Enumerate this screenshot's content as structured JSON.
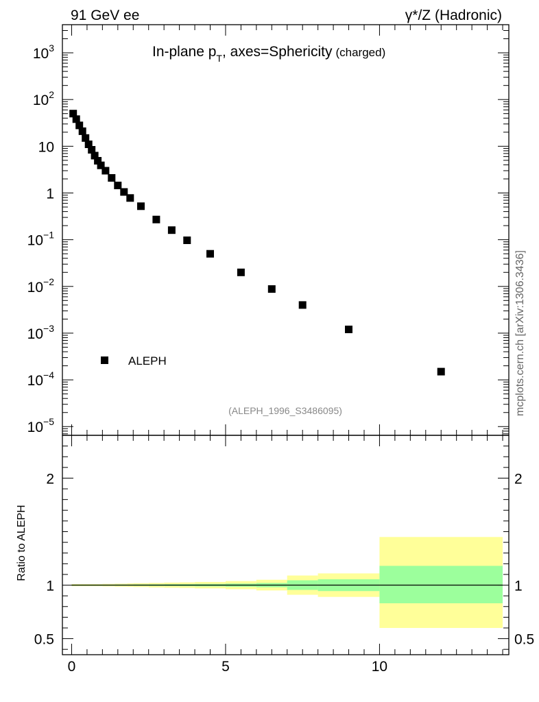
{
  "header": {
    "left": "91 GeV ee",
    "right_symbol": "γ",
    "right_rest": "*/Z (Hadronic)"
  },
  "plot_title": {
    "main": "In-plane p",
    "sub": "T",
    "rest": ", axes=Sphericity",
    "small": "(charged)"
  },
  "side_label": "mcplots.cern.ch [arXiv:1306.3436]",
  "analysis_tag": "(ALEPH_1996_S3486095)",
  "chart_data": [
    {
      "type": "scatter",
      "name": "main",
      "yscale": "log",
      "xlim": [
        -0.3,
        14.2
      ],
      "ylim": [
        6.5e-06,
        4000
      ],
      "ytick_labels": [
        {
          "value": 1000,
          "base": "10",
          "exp": "3"
        },
        {
          "value": 100,
          "base": "10",
          "exp": "2"
        },
        {
          "value": 10,
          "base": "10",
          "exp": ""
        },
        {
          "value": 1,
          "base": "1",
          "exp": ""
        },
        {
          "value": 0.1,
          "base": "10",
          "exp": "−1"
        },
        {
          "value": 0.01,
          "base": "10",
          "exp": "−2"
        },
        {
          "value": 0.001,
          "base": "10",
          "exp": "−3"
        },
        {
          "value": 0.0001,
          "base": "10",
          "exp": "−4"
        },
        {
          "value": 1e-05,
          "base": "10",
          "exp": "−5"
        }
      ],
      "legend": [
        {
          "label": "ALEPH",
          "marker": "square",
          "position": "lower-left"
        }
      ],
      "series": [
        {
          "name": "ALEPH",
          "x": [
            0.05,
            0.15,
            0.25,
            0.35,
            0.45,
            0.55,
            0.65,
            0.75,
            0.85,
            0.95,
            1.1,
            1.3,
            1.5,
            1.7,
            1.9,
            2.25,
            2.75,
            3.25,
            3.75,
            4.5,
            5.5,
            6.5,
            7.5,
            9.0,
            12.0
          ],
          "y": [
            50,
            38,
            28,
            21,
            15,
            11,
            8.4,
            6.3,
            4.9,
            3.9,
            3.0,
            2.1,
            1.45,
            1.05,
            0.78,
            0.52,
            0.27,
            0.16,
            0.097,
            0.05,
            0.02,
            0.0088,
            0.004,
            0.0012,
            0.00015
          ]
        }
      ]
    },
    {
      "type": "area",
      "name": "ratio",
      "ylabel": "Ratio to ALEPH",
      "ylim": [
        0.35,
        2.4
      ],
      "yticks": [
        0.5,
        1,
        2
      ],
      "ytick_labels": [
        "0.5",
        "1",
        "2"
      ],
      "xticks": [
        0,
        5,
        10
      ],
      "xtick_labels": [
        "0",
        "5",
        "10"
      ],
      "reference": 1,
      "bins": [
        {
          "x0": 0.0,
          "x1": 0.1,
          "inner": [
            0.995,
            1.005
          ],
          "outer": [
            0.99,
            1.01
          ]
        },
        {
          "x0": 0.1,
          "x1": 0.2,
          "inner": [
            0.995,
            1.005
          ],
          "outer": [
            0.99,
            1.01
          ]
        },
        {
          "x0": 0.2,
          "x1": 0.3,
          "inner": [
            0.995,
            1.005
          ],
          "outer": [
            0.99,
            1.01
          ]
        },
        {
          "x0": 0.3,
          "x1": 0.4,
          "inner": [
            0.995,
            1.005
          ],
          "outer": [
            0.99,
            1.01
          ]
        },
        {
          "x0": 0.4,
          "x1": 0.5,
          "inner": [
            0.995,
            1.005
          ],
          "outer": [
            0.99,
            1.01
          ]
        },
        {
          "x0": 0.5,
          "x1": 0.6,
          "inner": [
            0.995,
            1.005
          ],
          "outer": [
            0.99,
            1.01
          ]
        },
        {
          "x0": 0.6,
          "x1": 0.7,
          "inner": [
            0.995,
            1.005
          ],
          "outer": [
            0.99,
            1.01
          ]
        },
        {
          "x0": 0.7,
          "x1": 0.8,
          "inner": [
            0.995,
            1.005
          ],
          "outer": [
            0.99,
            1.01
          ]
        },
        {
          "x0": 0.8,
          "x1": 0.9,
          "inner": [
            0.995,
            1.005
          ],
          "outer": [
            0.99,
            1.01
          ]
        },
        {
          "x0": 0.9,
          "x1": 1.0,
          "inner": [
            0.995,
            1.005
          ],
          "outer": [
            0.99,
            1.01
          ]
        },
        {
          "x0": 1.0,
          "x1": 1.2,
          "inner": [
            0.995,
            1.005
          ],
          "outer": [
            0.988,
            1.012
          ]
        },
        {
          "x0": 1.2,
          "x1": 1.4,
          "inner": [
            0.995,
            1.005
          ],
          "outer": [
            0.988,
            1.012
          ]
        },
        {
          "x0": 1.4,
          "x1": 1.6,
          "inner": [
            0.994,
            1.006
          ],
          "outer": [
            0.986,
            1.014
          ]
        },
        {
          "x0": 1.6,
          "x1": 1.8,
          "inner": [
            0.994,
            1.006
          ],
          "outer": [
            0.986,
            1.014
          ]
        },
        {
          "x0": 1.8,
          "x1": 2.0,
          "inner": [
            0.994,
            1.006
          ],
          "outer": [
            0.984,
            1.016
          ]
        },
        {
          "x0": 2.0,
          "x1": 2.5,
          "inner": [
            0.993,
            1.007
          ],
          "outer": [
            0.982,
            1.018
          ]
        },
        {
          "x0": 2.5,
          "x1": 3.0,
          "inner": [
            0.992,
            1.008
          ],
          "outer": [
            0.979,
            1.021
          ]
        },
        {
          "x0": 3.0,
          "x1": 3.5,
          "inner": [
            0.991,
            1.009
          ],
          "outer": [
            0.976,
            1.024
          ]
        },
        {
          "x0": 3.5,
          "x1": 4.0,
          "inner": [
            0.99,
            1.01
          ],
          "outer": [
            0.974,
            1.026
          ]
        },
        {
          "x0": 4.0,
          "x1": 5.0,
          "inner": [
            0.988,
            1.012
          ],
          "outer": [
            0.97,
            1.03
          ]
        },
        {
          "x0": 5.0,
          "x1": 6.0,
          "inner": [
            0.985,
            1.015
          ],
          "outer": [
            0.962,
            1.038
          ]
        },
        {
          "x0": 6.0,
          "x1": 7.0,
          "inner": [
            0.98,
            1.02
          ],
          "outer": [
            0.95,
            1.05
          ]
        },
        {
          "x0": 7.0,
          "x1": 8.0,
          "inner": [
            0.955,
            1.045
          ],
          "outer": [
            0.91,
            1.09
          ]
        },
        {
          "x0": 8.0,
          "x1": 10.0,
          "inner": [
            0.945,
            1.055
          ],
          "outer": [
            0.89,
            1.11
          ]
        },
        {
          "x0": 10.0,
          "x1": 14.0,
          "inner": [
            0.83,
            1.18
          ],
          "outer": [
            0.6,
            1.45
          ]
        }
      ]
    }
  ],
  "colors": {
    "inner_band": "#9cff9c",
    "outer_band": "#ffff99",
    "marker": "#000000",
    "analysis_tag": "#888888",
    "side_label": "#666666"
  }
}
